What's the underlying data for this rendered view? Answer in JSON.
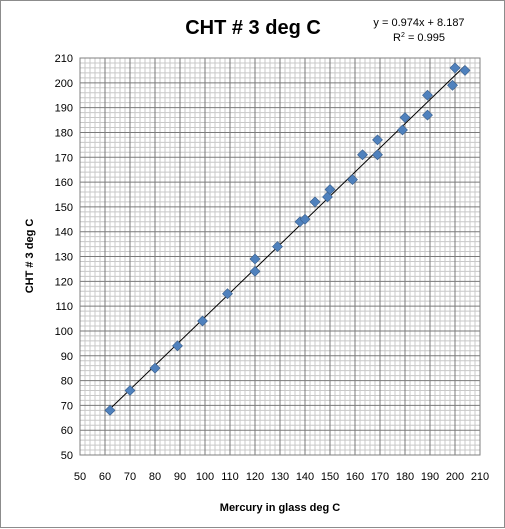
{
  "chart_data": {
    "type": "scatter",
    "title": "CHT # 3  deg C",
    "xlabel": "Mercury in glass  deg C",
    "ylabel": "CHT # 3 deg C",
    "xlim": [
      50,
      210
    ],
    "ylim": [
      50,
      210
    ],
    "xticks": [
      50,
      60,
      70,
      80,
      90,
      100,
      110,
      120,
      130,
      140,
      150,
      160,
      170,
      180,
      190,
      200,
      210
    ],
    "yticks": [
      50,
      60,
      70,
      80,
      90,
      100,
      110,
      120,
      130,
      140,
      150,
      160,
      170,
      180,
      190,
      200,
      210
    ],
    "grid": true,
    "legend": "none",
    "marker_color": "#4f81bd",
    "trendline": {
      "type": "linear",
      "slope": 0.974,
      "intercept": 8.187,
      "equation": "y = 0.974x + 8.187",
      "r2_label": "R",
      "r2_exp": "2",
      "r2_value": " = 0.995",
      "color": "#000000"
    },
    "points": [
      {
        "x": 62,
        "y": 68
      },
      {
        "x": 70,
        "y": 76
      },
      {
        "x": 80,
        "y": 85
      },
      {
        "x": 89,
        "y": 94
      },
      {
        "x": 99,
        "y": 104
      },
      {
        "x": 109,
        "y": 115
      },
      {
        "x": 120,
        "y": 124
      },
      {
        "x": 120,
        "y": 129
      },
      {
        "x": 129,
        "y": 134
      },
      {
        "x": 138,
        "y": 144
      },
      {
        "x": 140,
        "y": 145
      },
      {
        "x": 144,
        "y": 152
      },
      {
        "x": 149,
        "y": 154
      },
      {
        "x": 150,
        "y": 157
      },
      {
        "x": 159,
        "y": 161
      },
      {
        "x": 163,
        "y": 171
      },
      {
        "x": 169,
        "y": 171
      },
      {
        "x": 169,
        "y": 177
      },
      {
        "x": 179,
        "y": 181
      },
      {
        "x": 180,
        "y": 186
      },
      {
        "x": 189,
        "y": 187
      },
      {
        "x": 189,
        "y": 195
      },
      {
        "x": 199,
        "y": 199
      },
      {
        "x": 200,
        "y": 206
      },
      {
        "x": 204,
        "y": 205
      }
    ]
  }
}
